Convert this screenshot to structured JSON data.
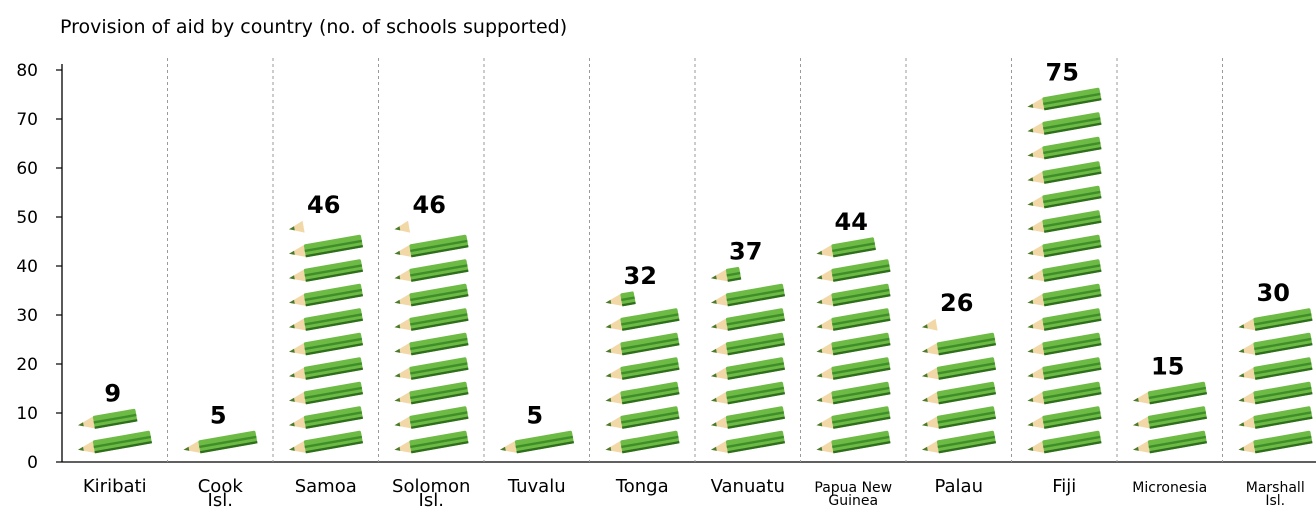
{
  "chart_data": {
    "type": "bar",
    "title": "Provision of aid by country (no. of schools supported)",
    "xlabel": "",
    "ylabel": "",
    "ylim": [
      0,
      80
    ],
    "yticks": [
      "0",
      "10",
      "20",
      "30",
      "40",
      "50",
      "60",
      "70",
      "80"
    ],
    "grid": "vertical dashed separators",
    "unit_per_icon": 5,
    "categories": [
      [
        "Kiribati"
      ],
      [
        "Cook",
        "Isl."
      ],
      [
        "Samoa"
      ],
      [
        "Solomon",
        "Isl."
      ],
      [
        "Tuvalu"
      ],
      [
        "Tonga"
      ],
      [
        "Vanuatu"
      ],
      [
        "Papua New",
        "Guinea"
      ],
      [
        "Palau"
      ],
      [
        "Fiji"
      ],
      [
        "Micronesia"
      ],
      [
        "Marshall",
        "Isl."
      ]
    ],
    "values": [
      9,
      5,
      46,
      46,
      5,
      32,
      37,
      44,
      26,
      75,
      15,
      30
    ],
    "data_labels": [
      "9",
      "5",
      "46",
      "46",
      "5",
      "32",
      "37",
      "44",
      "26",
      "75",
      "15",
      "30"
    ],
    "colors": {
      "pencil_body": "#6dbb45",
      "pencil_stripe": "#3f8e2a",
      "pencil_dark": "#2f6e1c",
      "wood": "#f2d7a7",
      "lead": "#4a7b2a",
      "separator": "#9a9a9a",
      "axis": "#000000"
    }
  }
}
